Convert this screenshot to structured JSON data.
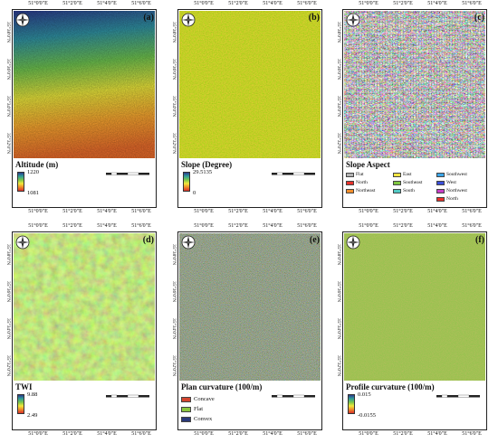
{
  "longitude_ticks": [
    "51°0'0\"E",
    "51°2'0\"E",
    "51°4'0\"E",
    "51°6'0\"E"
  ],
  "latitude_ticks": [
    "35°38'0\"N",
    "35°36'0\"N",
    "35°34'0\"N",
    "35°32'0\"N"
  ],
  "scale_bar_labels": [
    "0",
    "0.5",
    "1",
    "2",
    "3",
    "4"
  ],
  "scale_unit": "Km",
  "panels": {
    "a": {
      "label": "(a)",
      "legend_title": "Altitude (m)",
      "max": "1220",
      "min": "1081"
    },
    "b": {
      "label": "(b)",
      "legend_title": "Slope (Degree)",
      "max": "29.5135",
      "min": "0"
    },
    "c": {
      "label": "(c)",
      "legend_title": "Slope Aspect",
      "classes": [
        {
          "name": "Flat",
          "color": "#b3b3b3"
        },
        {
          "name": "North",
          "color": "#e8312b"
        },
        {
          "name": "Northeast",
          "color": "#f28e2b"
        },
        {
          "name": "East",
          "color": "#f4e542"
        },
        {
          "name": "Southeast",
          "color": "#7ec63f"
        },
        {
          "name": "South",
          "color": "#52c9c4"
        },
        {
          "name": "Southwest",
          "color": "#3ca6e8"
        },
        {
          "name": "West",
          "color": "#3b4fd9"
        },
        {
          "name": "Northwest",
          "color": "#c63fc6"
        },
        {
          "name": "North",
          "color": "#e8312b"
        }
      ]
    },
    "d": {
      "label": "(d)",
      "legend_title": "TWI",
      "max": "9.88",
      "min": "2.49"
    },
    "e": {
      "label": "(e)",
      "legend_title": "Plan curvature (100/m)",
      "classes": [
        {
          "name": "Concave",
          "color": "#d4452f"
        },
        {
          "name": "Flat",
          "color": "#8cc63f"
        },
        {
          "name": "Convex",
          "color": "#2b3a7a"
        }
      ]
    },
    "f": {
      "label": "(f)",
      "legend_title": "Profile curvature (100/m)",
      "max": "0.015",
      "min": "-0.0155"
    }
  },
  "colors": {
    "ramp_rainbow": [
      "#2b3a8c",
      "#2f9e9a",
      "#7cc74a",
      "#f2e83a",
      "#f08a2a",
      "#d9302a"
    ]
  }
}
